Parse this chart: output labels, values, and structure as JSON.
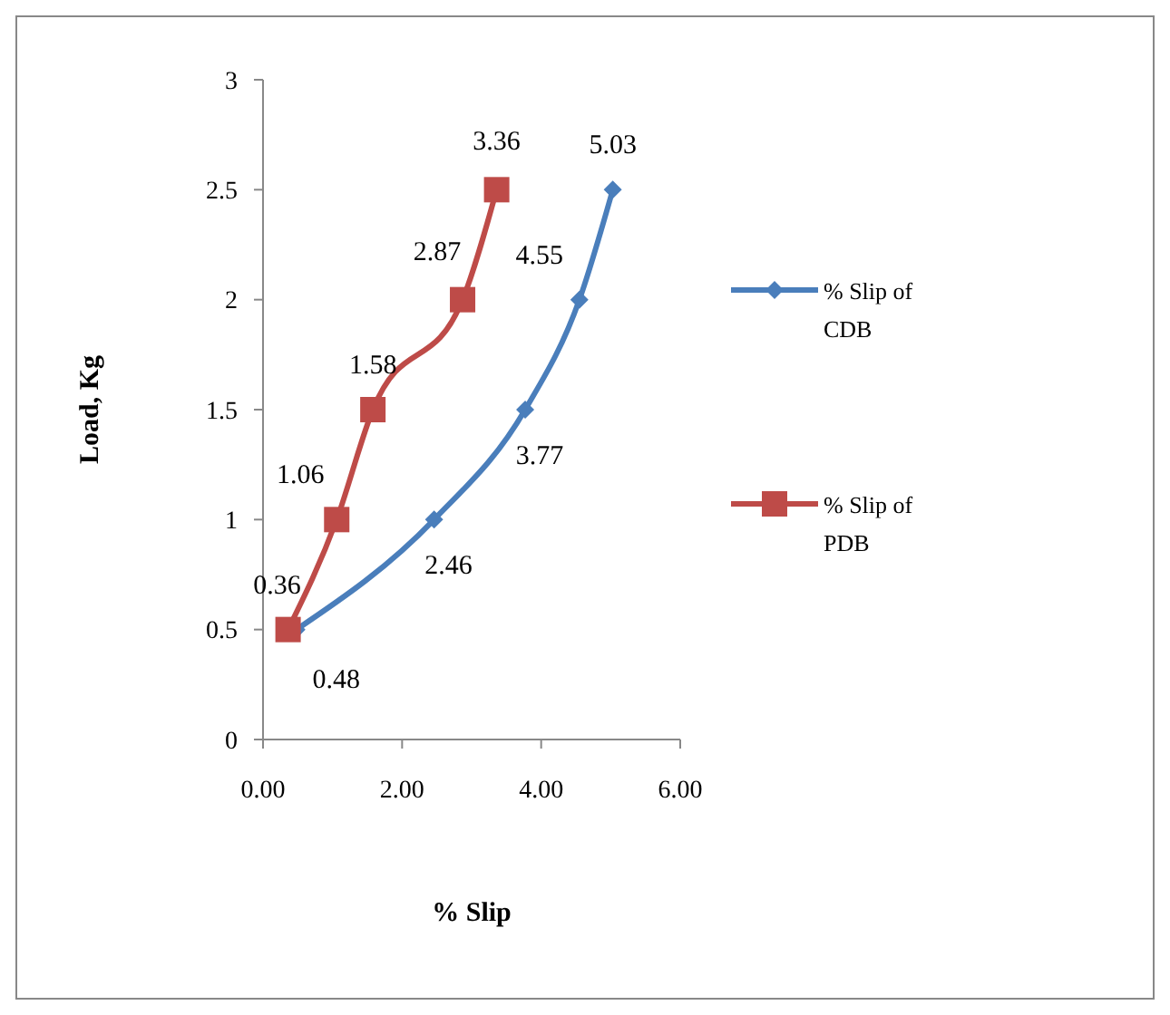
{
  "chart_data": {
    "type": "line",
    "xlabel": "% Slip",
    "ylabel": "Load, Kg",
    "xlim": [
      0,
      6
    ],
    "xticks": [
      {
        "value": 0,
        "label": "0.00"
      },
      {
        "value": 2,
        "label": "2.00"
      },
      {
        "value": 4,
        "label": "4.00"
      },
      {
        "value": 6,
        "label": "6.00"
      }
    ],
    "ylim": [
      0,
      3
    ],
    "yticks": [
      0,
      0.5,
      1,
      1.5,
      2,
      2.5,
      3
    ],
    "grid": false,
    "legend": "right",
    "series": [
      {
        "name": "% Slip of CDB",
        "color": "#4a7ebb",
        "marker": "diamond",
        "x": [
          0.48,
          2.46,
          3.77,
          4.55,
          5.03
        ],
        "values": [
          0.5,
          1,
          1.5,
          2,
          2.5
        ]
      },
      {
        "name": "% Slip of PDB",
        "color": "#be4b48",
        "marker": "square",
        "x": [
          0.36,
          1.06,
          1.58,
          2.87,
          3.36
        ],
        "values": [
          0.5,
          1,
          1.5,
          2,
          2.5
        ]
      }
    ],
    "annotations": [
      {
        "text": "0.48",
        "x": 0.48,
        "y": 0.5
      },
      {
        "text": "2.46",
        "x": 2.46,
        "y": 1
      },
      {
        "text": "3.77",
        "x": 3.77,
        "y": 1.5
      },
      {
        "text": "4.55",
        "x": 4.55,
        "y": 2
      },
      {
        "text": "5.03",
        "x": 5.03,
        "y": 2.5
      },
      {
        "text": "0.36",
        "x": 0.36,
        "y": 0.5
      },
      {
        "text": "1.06",
        "x": 1.06,
        "y": 1
      },
      {
        "text": "1.58",
        "x": 1.58,
        "y": 1.5
      },
      {
        "text": "2.87",
        "x": 2.87,
        "y": 2
      },
      {
        "text": "3.36",
        "x": 3.36,
        "y": 2.5
      }
    ]
  }
}
